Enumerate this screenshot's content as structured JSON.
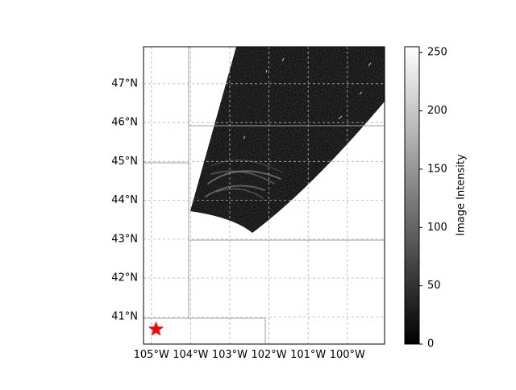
{
  "map": {
    "lat_ticks": [
      "41°N",
      "42°N",
      "43°N",
      "44°N",
      "45°N",
      "46°N",
      "47°N"
    ],
    "lon_ticks": [
      "105°W",
      "104°W",
      "103°W",
      "102°W",
      "101°W",
      "100°W"
    ],
    "lon_range": [
      -105.2,
      -99.05
    ],
    "lat_range": [
      40.3,
      47.95
    ],
    "marker": {
      "label": "",
      "lon": -104.88,
      "lat": 40.68,
      "color": "#ff0000",
      "icon": "star-icon"
    },
    "data_swath": {
      "colormap": "gray",
      "has_arc_features": true
    }
  },
  "colorbar": {
    "label": "Image Intensity",
    "ticks": [
      "0",
      "50",
      "100",
      "150",
      "200",
      "250"
    ],
    "tick_values": [
      0,
      50,
      100,
      150,
      200,
      250
    ],
    "range": [
      0,
      255
    ]
  }
}
